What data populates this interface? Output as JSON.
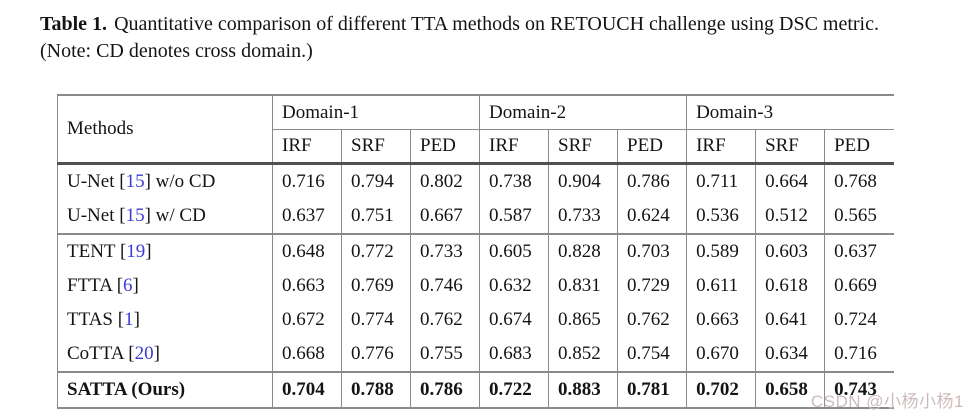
{
  "caption": {
    "label": "Table 1.",
    "text": "Quantitative comparison of different TTA methods on RETOUCH challenge using DSC metric. (Note: CD denotes cross domain.)"
  },
  "table": {
    "methods_header": "Methods",
    "domains": [
      "Domain-1",
      "Domain-2",
      "Domain-3"
    ],
    "metrics": [
      "IRF",
      "SRF",
      "PED"
    ],
    "bracket_open": "[",
    "bracket_close": "]",
    "rows": [
      {
        "name": "U-Net",
        "citation": "15",
        "suffix": "w/o CD",
        "bold": false,
        "group_end": false,
        "values": [
          "0.716",
          "0.794",
          "0.802",
          "0.738",
          "0.904",
          "0.786",
          "0.711",
          "0.664",
          "0.768"
        ]
      },
      {
        "name": "U-Net",
        "citation": "15",
        "suffix": "w/ CD",
        "bold": false,
        "group_end": true,
        "values": [
          "0.637",
          "0.751",
          "0.667",
          "0.587",
          "0.733",
          "0.624",
          "0.536",
          "0.512",
          "0.565"
        ]
      },
      {
        "name": "TENT",
        "citation": "19",
        "suffix": "",
        "bold": false,
        "group_end": false,
        "values": [
          "0.648",
          "0.772",
          "0.733",
          "0.605",
          "0.828",
          "0.703",
          "0.589",
          "0.603",
          "0.637"
        ]
      },
      {
        "name": "FTTA",
        "citation": "6",
        "suffix": "",
        "bold": false,
        "group_end": false,
        "values": [
          "0.663",
          "0.769",
          "0.746",
          "0.632",
          "0.831",
          "0.729",
          "0.611",
          "0.618",
          "0.669"
        ]
      },
      {
        "name": "TTAS",
        "citation": "1",
        "suffix": "",
        "bold": false,
        "group_end": false,
        "values": [
          "0.672",
          "0.774",
          "0.762",
          "0.674",
          "0.865",
          "0.762",
          "0.663",
          "0.641",
          "0.724"
        ]
      },
      {
        "name": "CoTTA",
        "citation": "20",
        "suffix": "",
        "bold": false,
        "group_end": true,
        "values": [
          "0.668",
          "0.776",
          "0.755",
          "0.683",
          "0.852",
          "0.754",
          "0.670",
          "0.634",
          "0.716"
        ]
      },
      {
        "name": "SATTA (Ours)",
        "citation": "",
        "suffix": "",
        "bold": true,
        "group_end": false,
        "values": [
          "0.704",
          "0.788",
          "0.786",
          "0.722",
          "0.883",
          "0.781",
          "0.702",
          "0.658",
          "0.743"
        ]
      }
    ]
  },
  "watermark": {
    "text": "CSDN @小杨小杨1",
    "color": "#cdbbbb"
  },
  "colors": {
    "rule_thin": "#8a8a8a",
    "rule_thick": "#515151",
    "citation_blue": "#3b3bd6",
    "text": "#141414",
    "background": "#ffffff"
  }
}
